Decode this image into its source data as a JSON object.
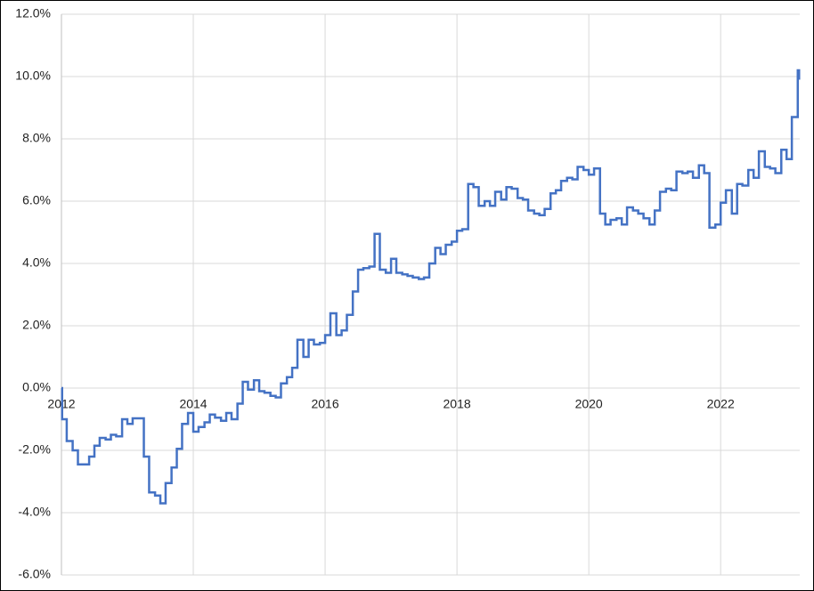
{
  "chart_data": {
    "type": "line",
    "step": true,
    "x": [
      2012,
      2012.01,
      2012.08,
      2012.17,
      2012.25,
      2012.42,
      2012.5,
      2012.58,
      2012.67,
      2012.75,
      2012.83,
      2012.92,
      2013,
      2013.08,
      2013.25,
      2013.33,
      2013.42,
      2013.5,
      2013.58,
      2013.67,
      2013.75,
      2013.83,
      2013.92,
      2014,
      2014.08,
      2014.17,
      2014.25,
      2014.33,
      2014.42,
      2014.5,
      2014.58,
      2014.67,
      2014.75,
      2014.83,
      2014.92,
      2015,
      2015.08,
      2015.17,
      2015.25,
      2015.33,
      2015.42,
      2015.5,
      2015.58,
      2015.67,
      2015.75,
      2015.83,
      2015.92,
      2016,
      2016.08,
      2016.17,
      2016.25,
      2016.33,
      2016.42,
      2016.5,
      2016.58,
      2016.67,
      2016.75,
      2016.83,
      2016.92,
      2017,
      2017.08,
      2017.17,
      2017.25,
      2017.33,
      2017.42,
      2017.5,
      2017.58,
      2017.67,
      2017.75,
      2017.83,
      2017.92,
      2018,
      2018.08,
      2018.17,
      2018.25,
      2018.33,
      2018.42,
      2018.5,
      2018.58,
      2018.67,
      2018.75,
      2018.83,
      2018.92,
      2019,
      2019.08,
      2019.17,
      2019.25,
      2019.33,
      2019.42,
      2019.5,
      2019.58,
      2019.67,
      2019.75,
      2019.83,
      2019.92,
      2020,
      2020.08,
      2020.17,
      2020.25,
      2020.33,
      2020.42,
      2020.5,
      2020.58,
      2020.67,
      2020.75,
      2020.83,
      2020.92,
      2021,
      2021.08,
      2021.17,
      2021.25,
      2021.33,
      2021.42,
      2021.5,
      2021.58,
      2021.67,
      2021.75,
      2021.83,
      2021.92,
      2022,
      2022.08,
      2022.17,
      2022.25,
      2022.33,
      2022.42,
      2022.5,
      2022.58,
      2022.67,
      2022.75,
      2022.83,
      2022.92,
      2023,
      2023.08,
      2023.17,
      2023.19
    ],
    "series": [
      {
        "color": "#4472c4",
        "values": [
          0,
          -1.0,
          -1.7,
          -2.0,
          -2.45,
          -2.2,
          -1.85,
          -1.6,
          -1.65,
          -1.5,
          -1.55,
          -1.0,
          -1.15,
          -0.97,
          -2.2,
          -3.35,
          -3.45,
          -3.7,
          -3.05,
          -2.55,
          -1.95,
          -1.15,
          -0.8,
          -1.4,
          -1.25,
          -1.1,
          -0.85,
          -0.95,
          -1.05,
          -0.8,
          -1.0,
          -0.5,
          0.2,
          -0.05,
          0.25,
          -0.1,
          -0.15,
          -0.25,
          -0.3,
          0.15,
          0.35,
          0.65,
          1.55,
          1.0,
          1.55,
          1.4,
          1.45,
          1.7,
          2.4,
          1.7,
          1.85,
          2.35,
          3.1,
          3.8,
          3.85,
          3.9,
          4.95,
          3.8,
          3.7,
          4.15,
          3.7,
          3.65,
          3.6,
          3.55,
          3.5,
          3.55,
          4.0,
          4.5,
          4.3,
          4.6,
          4.7,
          5.05,
          5.1,
          6.55,
          6.45,
          5.85,
          6.0,
          5.85,
          6.3,
          6.05,
          6.45,
          6.4,
          6.1,
          6.05,
          5.7,
          5.6,
          5.55,
          5.75,
          6.25,
          6.35,
          6.65,
          6.75,
          6.7,
          7.1,
          7.0,
          6.85,
          7.05,
          5.6,
          5.25,
          5.4,
          5.45,
          5.25,
          5.8,
          5.7,
          5.6,
          5.45,
          5.25,
          5.7,
          6.3,
          6.4,
          6.35,
          6.95,
          6.9,
          6.95,
          6.75,
          7.15,
          6.9,
          5.15,
          5.25,
          5.95,
          6.35,
          5.6,
          6.55,
          6.5,
          7.0,
          6.75,
          7.6,
          7.1,
          7.05,
          6.9,
          7.65,
          7.35,
          8.7,
          10.2,
          9.9
        ]
      }
    ],
    "xlim": [
      2012,
      2023.2
    ],
    "xticks": [
      2012,
      2014,
      2016,
      2018,
      2020,
      2022
    ],
    "ylim": [
      -6,
      12
    ],
    "yticks": [
      {
        "value": -6,
        "label": "-6.0%"
      },
      {
        "value": -4,
        "label": "-4.0%"
      },
      {
        "value": -2,
        "label": "-2.0%"
      },
      {
        "value": 0,
        "label": "0.0%"
      },
      {
        "value": 2,
        "label": "2.0%"
      },
      {
        "value": 4,
        "label": "4.0%"
      },
      {
        "value": 6,
        "label": "6.0%"
      },
      {
        "value": 8,
        "label": "8.0%"
      },
      {
        "value": 10,
        "label": "10.0%"
      },
      {
        "value": 12,
        "label": "12.0%"
      }
    ],
    "grid": true
  }
}
